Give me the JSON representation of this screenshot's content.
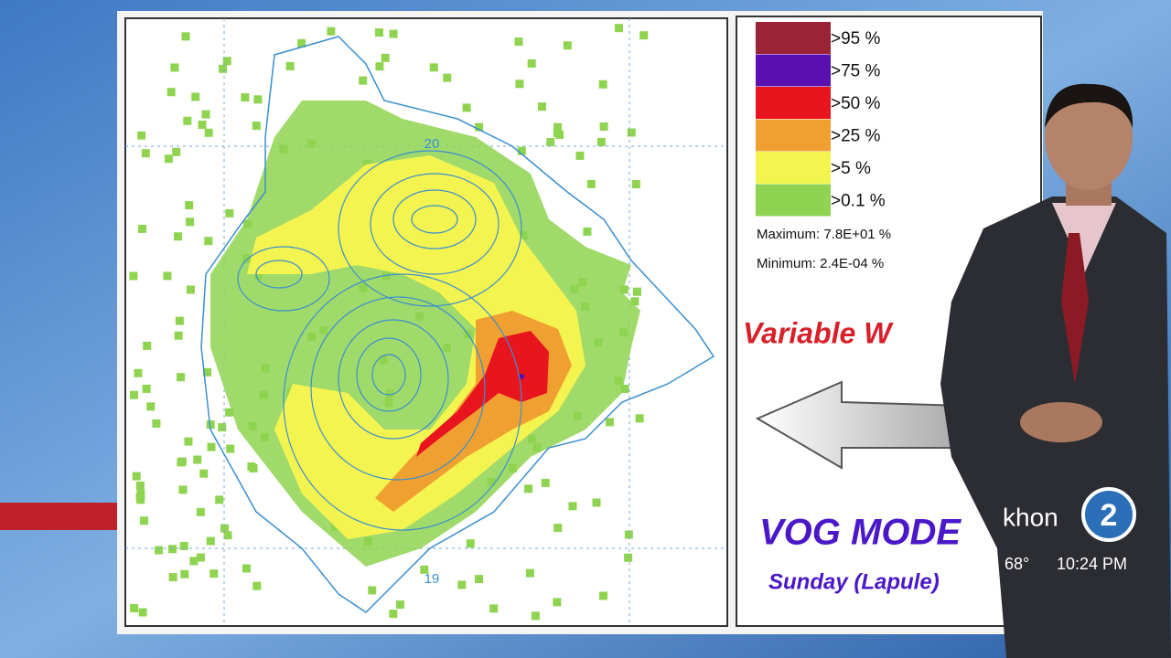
{
  "map": {
    "contour_labels": [
      "20",
      "19"
    ]
  },
  "legend": {
    "items": [
      {
        "label": ">95 %",
        "color": "#9b2335"
      },
      {
        "label": ">75 %",
        "color": "#5a0fb0"
      },
      {
        "label": ">50 %",
        "color": "#e8141e"
      },
      {
        "label": ">25 %",
        "color": "#f0a030"
      },
      {
        "label": ">5 %",
        "color": "#f4f450"
      },
      {
        "label": ">0.1 %",
        "color": "#8fd450"
      }
    ],
    "maximum": "Maximum: 7.8E+01 %",
    "minimum": "Minimum: 2.4E-04 %"
  },
  "wind_label": "Variable W",
  "model_title": "VOG MODE",
  "model_subtitle": "Sunday  (Lapule)",
  "station": {
    "logo": "khon",
    "channel": "2",
    "temperature": "68°",
    "time": "10:24 PM"
  }
}
